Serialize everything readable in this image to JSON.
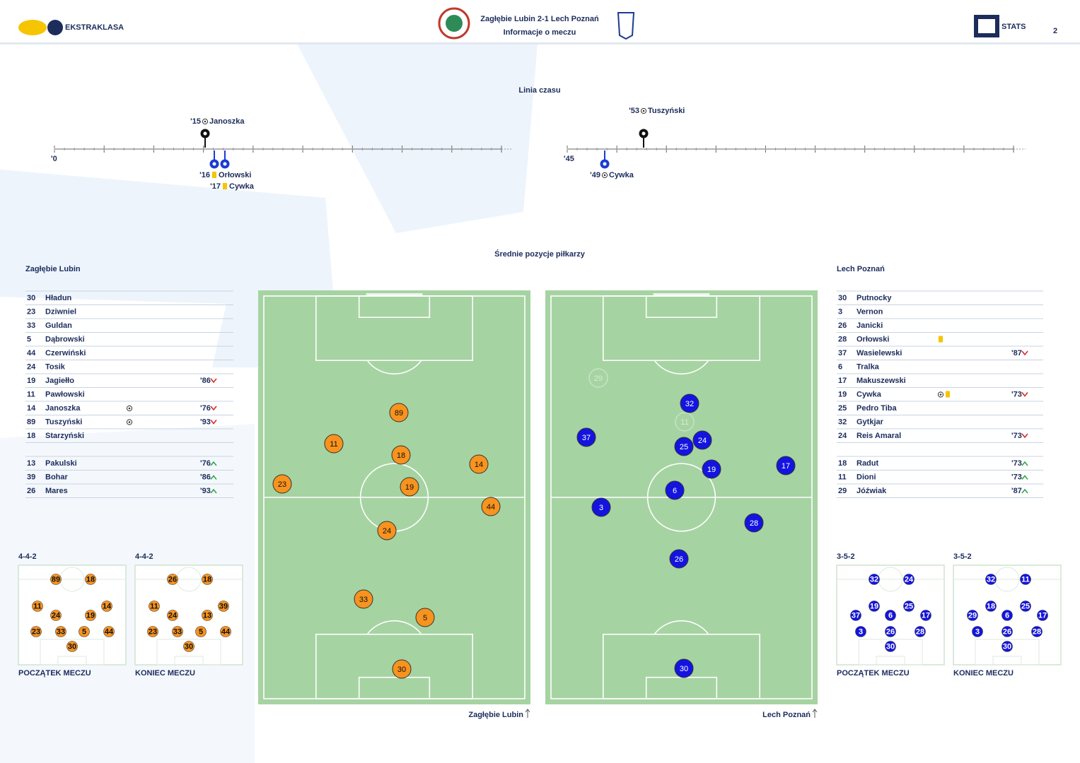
{
  "header": {
    "league": "EKSTRAKLASA",
    "match": "Zagłębie Lubin 2-1  Lech Poznań",
    "subtitle": "Informacje o meczu",
    "brand": "STATS",
    "page": "2"
  },
  "timeline": {
    "title": "Linia czasu",
    "halves": [
      {
        "start": "'0",
        "events": [
          {
            "minute": "'15",
            "player": "Janoszka",
            "event": "goal",
            "team": "home"
          },
          {
            "minute": "'16",
            "player": "Orłowski",
            "event": "yellow",
            "team": "away"
          },
          {
            "minute": "'17",
            "player": "Cywka",
            "event": "yellow",
            "team": "away"
          }
        ]
      },
      {
        "start": "'45",
        "events": [
          {
            "minute": "'53",
            "player": "Tuszyński",
            "event": "goal",
            "team": "home"
          },
          {
            "minute": "'49",
            "player": "Cywka",
            "event": "goal",
            "team": "away"
          }
        ]
      }
    ]
  },
  "positions": {
    "title": "Średnie pozycje piłkarzy",
    "teams": [
      {
        "name": "Zagłębie Lubin",
        "color": "#f7931e",
        "players": [
          {
            "number": 30,
            "name": "Hładun"
          },
          {
            "number": 23,
            "name": "Dziwniel"
          },
          {
            "number": 33,
            "name": "Guldan"
          },
          {
            "number": 5,
            "name": "Dąbrowski"
          },
          {
            "number": 44,
            "name": "Czerwiński"
          },
          {
            "number": 24,
            "name": "Tosik"
          },
          {
            "number": 19,
            "name": "Jagiełło",
            "change": {
              "minute": "'86",
              "direction": "off"
            }
          },
          {
            "number": 11,
            "name": "Pawłowski"
          },
          {
            "number": 14,
            "name": "Janoszka",
            "events": [
              "goal"
            ],
            "change": {
              "minute": "'76",
              "direction": "off"
            }
          },
          {
            "number": 89,
            "name": "Tuszyński",
            "events": [
              "goal"
            ],
            "change": {
              "minute": "'93",
              "direction": "off"
            }
          },
          {
            "number": 18,
            "name": "Starzyński"
          }
        ],
        "subs": [
          {
            "number": 13,
            "name": "Pakulski",
            "change": {
              "minute": "'76",
              "direction": "on"
            }
          },
          {
            "number": 39,
            "name": "Bohar",
            "change": {
              "minute": "'86",
              "direction": "on"
            }
          },
          {
            "number": 26,
            "name": "Mares",
            "change": {
              "minute": "'93",
              "direction": "on"
            }
          }
        ],
        "pitch": [
          {
            "number": 89
          },
          {
            "number": 11
          },
          {
            "number": 18
          },
          {
            "number": 14
          },
          {
            "number": 23
          },
          {
            "number": 19
          },
          {
            "number": 44
          },
          {
            "number": 24
          },
          {
            "number": 33
          },
          {
            "number": 5
          },
          {
            "number": 30
          }
        ],
        "formations": [
          {
            "formation": "4-4-2",
            "label": "POCZĄTEK MECZU",
            "numbers": [
              89,
              18,
              11,
              24,
              19,
              14,
              23,
              33,
              5,
              44,
              30
            ]
          },
          {
            "formation": "4-4-2",
            "label": "KONIEC MECZU",
            "numbers": [
              26,
              18,
              11,
              24,
              13,
              39,
              23,
              33,
              5,
              44,
              30
            ]
          }
        ]
      },
      {
        "name": "Lech Poznań",
        "color": "#1414e0",
        "players": [
          {
            "number": 30,
            "name": "Putnocky"
          },
          {
            "number": 3,
            "name": "Vernon"
          },
          {
            "number": 26,
            "name": "Janicki"
          },
          {
            "number": 28,
            "name": "Orłowski",
            "events": [
              "yellow"
            ]
          },
          {
            "number": 37,
            "name": "Wasielewski",
            "change": {
              "minute": "'87",
              "direction": "off"
            }
          },
          {
            "number": 6,
            "name": "Tralka"
          },
          {
            "number": 17,
            "name": "Makuszewski"
          },
          {
            "number": 19,
            "name": "Cywka",
            "events": [
              "goal",
              "yellow"
            ],
            "change": {
              "minute": "'73",
              "direction": "off"
            }
          },
          {
            "number": 25,
            "name": "Pedro Tiba"
          },
          {
            "number": 32,
            "name": "Gytkjar"
          },
          {
            "number": 24,
            "name": "Reis Amaral",
            "change": {
              "minute": "'73",
              "direction": "off"
            }
          }
        ],
        "subs": [
          {
            "number": 18,
            "name": "Radut",
            "change": {
              "minute": "'73",
              "direction": "on"
            }
          },
          {
            "number": 11,
            "name": "Dioni",
            "change": {
              "minute": "'73",
              "direction": "on"
            }
          },
          {
            "number": 29,
            "name": "Jóźwiak",
            "change": {
              "minute": "'87",
              "direction": "on"
            }
          }
        ],
        "pitch": [
          {
            "number": 29,
            "faded": true
          },
          {
            "number": 32
          },
          {
            "number": 11,
            "faded": true
          },
          {
            "number": 37
          },
          {
            "number": 25
          },
          {
            "number": 24
          },
          {
            "number": 19
          },
          {
            "number": 17
          },
          {
            "number": 6
          },
          {
            "number": 3
          },
          {
            "number": 28
          },
          {
            "number": 26
          },
          {
            "number": 30
          }
        ],
        "formations": [
          {
            "formation": "3-5-2",
            "label": "POCZĄTEK MECZU",
            "numbers": [
              32,
              24,
              37,
              19,
              6,
              25,
              17,
              3,
              26,
              28,
              30
            ]
          },
          {
            "formation": "3-5-2",
            "label": "KONIEC MECZU",
            "numbers": [
              32,
              11,
              29,
              18,
              6,
              25,
              17,
              3,
              26,
              28,
              30
            ]
          }
        ]
      }
    ]
  }
}
